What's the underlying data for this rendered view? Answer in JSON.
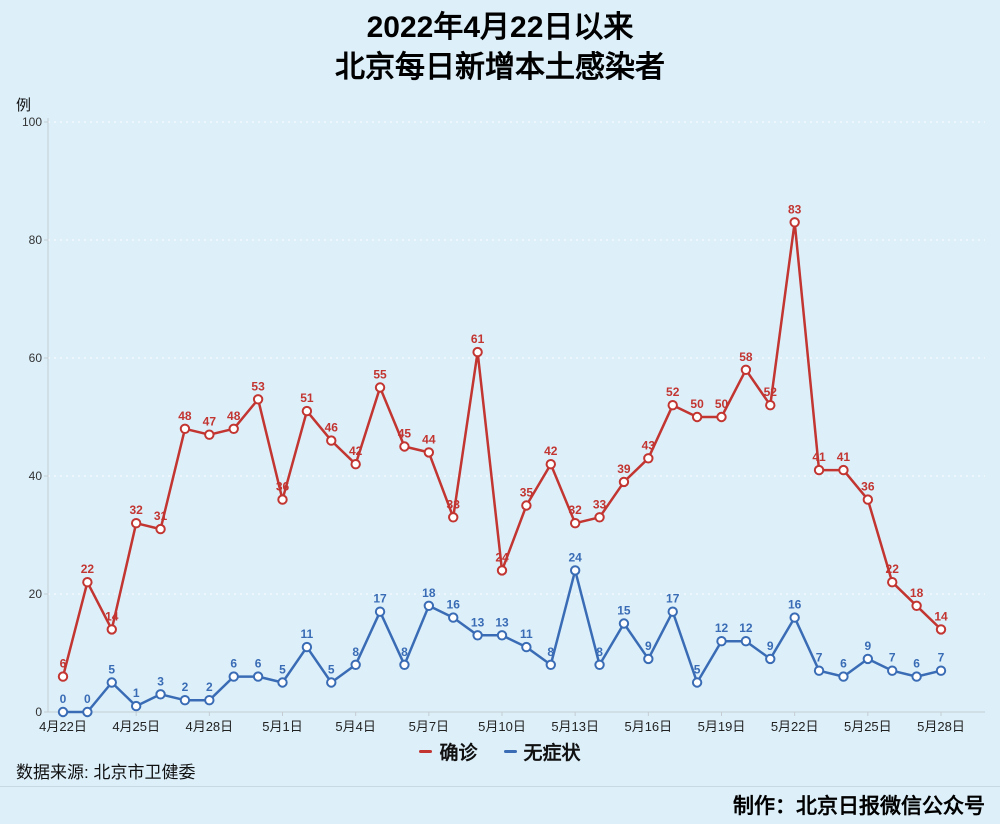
{
  "title": {
    "line1": "2022年4月22日以来",
    "line2": "北京每日新增本土感染者"
  },
  "chart_data": {
    "type": "line",
    "title": "2022年4月22日以来 北京每日新增本土感染者",
    "ylabel_unit": "例",
    "ylim": [
      0,
      100
    ],
    "y_ticks": [
      0,
      20,
      40,
      60,
      80,
      100
    ],
    "grid": true,
    "legend_position": "bottom",
    "x_tick_labels": [
      "4月22日",
      "4月25日",
      "4月28日",
      "5月1日",
      "5月4日",
      "5月7日",
      "5月10日",
      "5月13日",
      "5月16日",
      "5月19日",
      "5月22日",
      "5月25日",
      "5月28日"
    ],
    "series": [
      {
        "name": "确诊",
        "color": "#c23531",
        "values": [
          6,
          22,
          14,
          32,
          31,
          48,
          47,
          48,
          53,
          36,
          51,
          46,
          42,
          55,
          45,
          44,
          33,
          61,
          24,
          35,
          42,
          32,
          33,
          39,
          43,
          52,
          50,
          50,
          58,
          52,
          83,
          41,
          41,
          36,
          22,
          18,
          14
        ]
      },
      {
        "name": "无症状",
        "color": "#3a6cb5",
        "values": [
          0,
          0,
          5,
          1,
          3,
          2,
          2,
          6,
          6,
          5,
          11,
          5,
          8,
          17,
          8,
          18,
          16,
          13,
          13,
          11,
          8,
          24,
          8,
          15,
          9,
          17,
          5,
          12,
          12,
          9,
          16,
          7,
          6,
          9,
          7,
          6,
          7
        ]
      }
    ]
  },
  "colors": {
    "background": "#ddf0fa",
    "axis": "#c4ccd2",
    "gridline": "#ffffff",
    "divider": "#c7dae3"
  },
  "footer": {
    "source": "数据来源: 北京市卫健委",
    "credit": "制作：北京日报微信公众号"
  }
}
